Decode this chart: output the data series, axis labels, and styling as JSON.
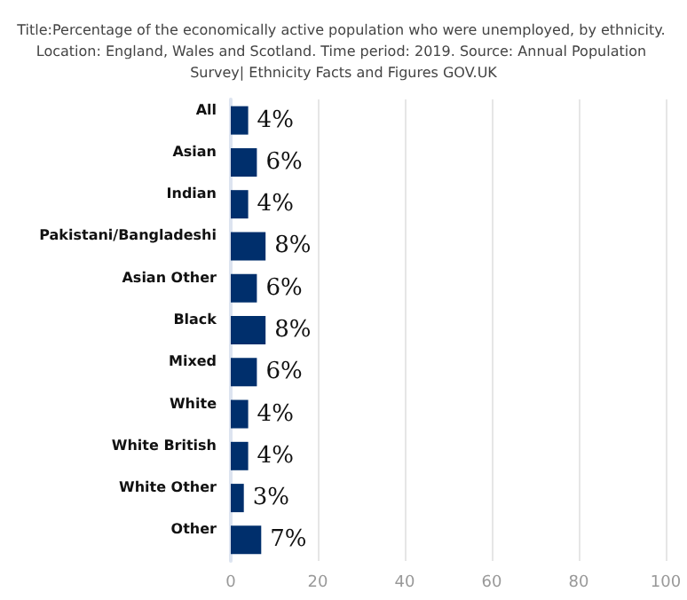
{
  "chart_data": {
    "type": "bar",
    "orientation": "horizontal",
    "title": "Title:Percentage of the economically active population who were unemployed, by ethnicity. Location: England, Wales and Scotland. Time period: 2019. Source: Annual Population Survey| Ethnicity Facts and Figures GOV.UK",
    "categories": [
      "All",
      "Asian",
      "Indian",
      "Pakistani/Bangladeshi",
      "Asian Other",
      "Black",
      "Mixed",
      "White",
      "White British",
      "White Other",
      "Other"
    ],
    "values": [
      4,
      6,
      4,
      8,
      6,
      8,
      6,
      4,
      4,
      3,
      7
    ],
    "value_labels": [
      "4%",
      "6%",
      "4%",
      "8%",
      "6%",
      "8%",
      "6%",
      "4%",
      "4%",
      "3%",
      "7%"
    ],
    "color": "#002f6c",
    "xlim": [
      0,
      100
    ],
    "xticks": [
      0,
      20,
      40,
      60,
      80,
      100
    ],
    "grid": "x"
  }
}
